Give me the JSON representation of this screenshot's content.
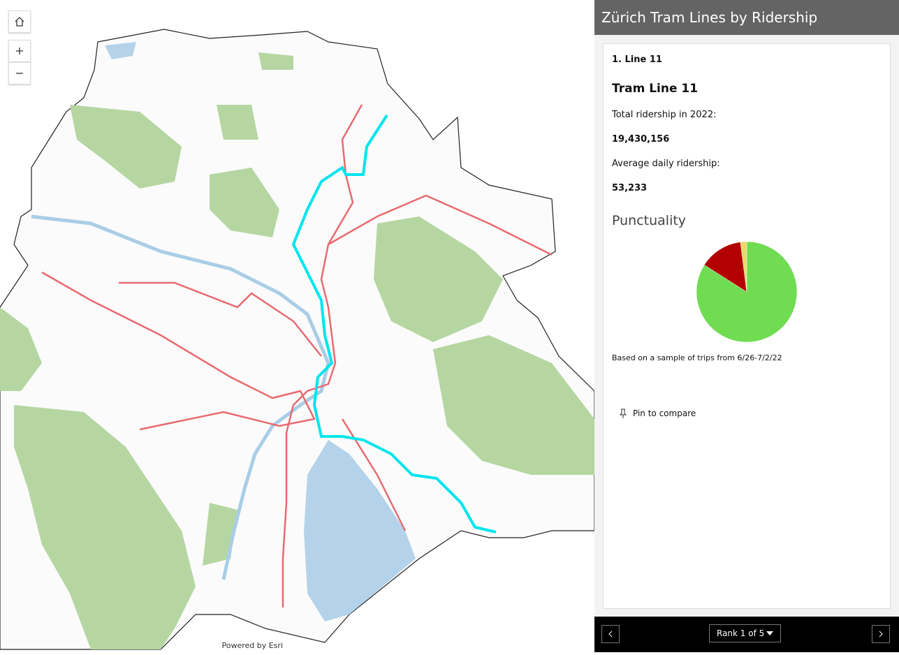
{
  "map": {
    "attribution": "Powered by Esri"
  },
  "panel": {
    "title": "Zürich Tram Lines by Ridership",
    "card": {
      "rank_label": "1. Line 11",
      "heading": "Tram Line 11",
      "total_label": "Total ridership in 2022:",
      "total_value": "19,430,156",
      "daily_label": "Average daily ridership:",
      "daily_value": "53,233",
      "pin": "Pin to compare"
    },
    "footer": {
      "rank": "Rank 1 of 5"
    }
  },
  "chart_data": {
    "type": "pie",
    "title": "Punctuality",
    "values": [
      84,
      14,
      2
    ],
    "colors": [
      "#6fdc52",
      "#b30000",
      "#e8d86a"
    ],
    "note": "Based on a sample of trips from 6/26-7/2/22"
  }
}
